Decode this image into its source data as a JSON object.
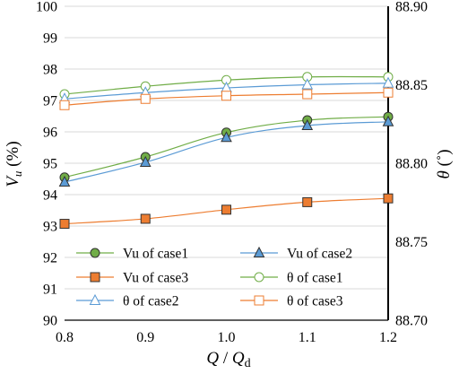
{
  "chart_data": {
    "type": "line",
    "x": [
      0.8,
      0.9,
      1.0,
      1.1,
      1.2
    ],
    "xlim": [
      0.8,
      1.2
    ],
    "xticks": [
      "0.8",
      "0.9",
      "1.0",
      "1.1",
      "1.2"
    ],
    "xlabel": {
      "q": "Q",
      "slash": " / ",
      "qd": "Q",
      "sub": "d"
    },
    "ylim": [
      90,
      100
    ],
    "yticks": [
      "90",
      "91",
      "92",
      "93",
      "94",
      "95",
      "96",
      "97",
      "98",
      "99",
      "100"
    ],
    "ylabel": {
      "v": "V",
      "sub": "u",
      "unit": " (%)"
    },
    "y2lim": [
      88.7,
      88.9
    ],
    "y2ticks": [
      "88.70",
      "88.75",
      "88.80",
      "88.85",
      "88.90"
    ],
    "y2label": {
      "theta": "θ",
      "unit": " (˚)"
    },
    "grid": "horizontal",
    "legend_placement": "bottom",
    "series": [
      {
        "name": "Vu of case1",
        "axis": "left",
        "color": "#70ad47",
        "marker": "circle",
        "filled": true,
        "values": [
          94.55,
          95.2,
          95.98,
          96.37,
          96.48
        ]
      },
      {
        "name": "Vu of case2",
        "axis": "left",
        "color": "#5b9bd5",
        "marker": "triangle",
        "filled": true,
        "values": [
          94.4,
          95.03,
          95.82,
          96.2,
          96.32
        ]
      },
      {
        "name": "Vu of case3",
        "axis": "left",
        "color": "#ed7d31",
        "marker": "square",
        "filled": true,
        "values": [
          93.07,
          93.23,
          93.52,
          93.76,
          93.88
        ]
      },
      {
        "name": "θ of case1",
        "axis": "right",
        "color": "#70ad47",
        "marker": "circle",
        "filled": false,
        "values": [
          88.844,
          88.849,
          88.853,
          88.855,
          88.855
        ]
      },
      {
        "name": "θ of case2",
        "axis": "right",
        "color": "#5b9bd5",
        "marker": "triangle",
        "filled": false,
        "values": [
          88.841,
          88.845,
          88.848,
          88.85,
          88.851
        ]
      },
      {
        "name": "θ of case3",
        "axis": "right",
        "color": "#ed7d31",
        "marker": "square",
        "filled": false,
        "values": [
          88.837,
          88.841,
          88.843,
          88.844,
          88.845
        ]
      }
    ]
  }
}
